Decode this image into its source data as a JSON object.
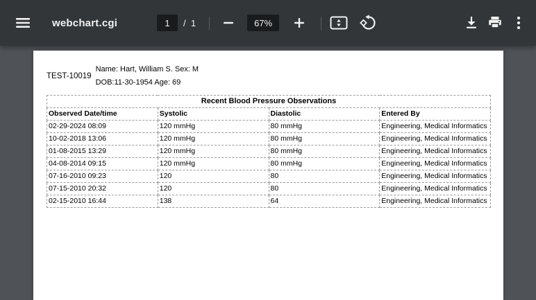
{
  "toolbar": {
    "title": "webchart.cgi",
    "page_current": "1",
    "page_total_label": "/  1",
    "zoom_level": "67%",
    "icons": {
      "menu": "hamburger-menu-icon",
      "zoom_out": "minus-icon",
      "zoom_in": "plus-icon",
      "fit_page": "fit-to-page-icon",
      "rotate": "rotate-counterclockwise-icon",
      "download": "download-icon",
      "print": "print-icon",
      "more": "kebab-menu-icon"
    }
  },
  "document": {
    "patient_id": "TEST-10019",
    "patient_line1": "Name: Hart, William S. Sex: M",
    "patient_line2": "DOB:11-30-1954 Age: 69",
    "table": {
      "title": "Recent Blood Pressure Observations",
      "columns": [
        "Observed Date/time",
        "Systolic",
        "Diastolic",
        "Entered By"
      ],
      "rows": [
        [
          "02-29-2024 08:09",
          "120 mmHg",
          "80 mmHg",
          "Engineering, Medical Informatics"
        ],
        [
          "10-02-2018 13:06",
          "120 mmHg",
          "80 mmHg",
          "Engineering, Medical Informatics"
        ],
        [
          "01-08-2015 13:29",
          "120 mmHg",
          "80 mmHg",
          "Engineering, Medical Informatics"
        ],
        [
          "04-08-2014 09:15",
          "120 mmHg",
          "80 mmHg",
          "Engineering, Medical Informatics"
        ],
        [
          "07-16-2010 09:23",
          "120",
          "80",
          "Engineering, Medical Informatics"
        ],
        [
          "07-15-2010 20:32",
          "120",
          "80",
          "Engineering, Medical Informatics"
        ],
        [
          "02-15-2010 16:44",
          "138",
          "64",
          "Engineering, Medical Informatics"
        ]
      ]
    }
  },
  "colors": {
    "toolbar_bg": "#323639",
    "viewport_bg": "#4f5357",
    "field_bg": "#191b1d",
    "icon_color": "#f1f1f1",
    "page_bg": "#ffffff",
    "doc_text": "#000000",
    "table_border": "#9a9a9a"
  }
}
